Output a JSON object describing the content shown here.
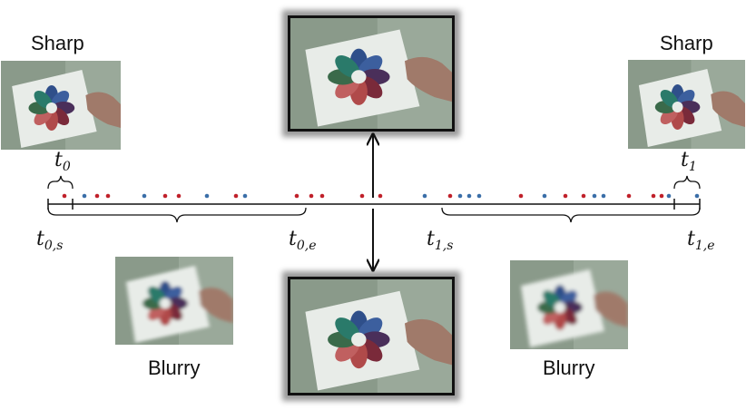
{
  "labels": {
    "sharp_left": "Sharp",
    "sharp_right": "Sharp",
    "blurry_left": "Blurry",
    "blurry_right": "Blurry"
  },
  "math_labels": {
    "t0": {
      "base": "t",
      "sub": "0"
    },
    "t1": {
      "base": "t",
      "sub": "1"
    },
    "t0s": {
      "base": "t",
      "sub": "0,s"
    },
    "t0e": {
      "base": "t",
      "sub": "0,e"
    },
    "t1s": {
      "base": "t",
      "sub": "1,s"
    },
    "t1e": {
      "base": "t",
      "sub": "1,e"
    }
  },
  "colors": {
    "event_positive": "#c0202a",
    "event_negative": "#3a6ea8",
    "line": "#111111",
    "petals": [
      "#2f4f8a",
      "#3c5f9e",
      "#4a2f5a",
      "#7a2a3a",
      "#b04a4a",
      "#c06060",
      "#3a6a4a",
      "#2a7a6a"
    ]
  },
  "events": [
    "r",
    "b",
    "r",
    "r",
    "b",
    "r",
    "r",
    "b",
    "r",
    "b",
    "r",
    "r",
    "r",
    "r",
    "r",
    "b",
    "r",
    "b",
    "b",
    "b",
    "r",
    "b",
    "r",
    "r",
    "b",
    "b",
    "r",
    "r",
    "r",
    "b",
    "b"
  ]
}
